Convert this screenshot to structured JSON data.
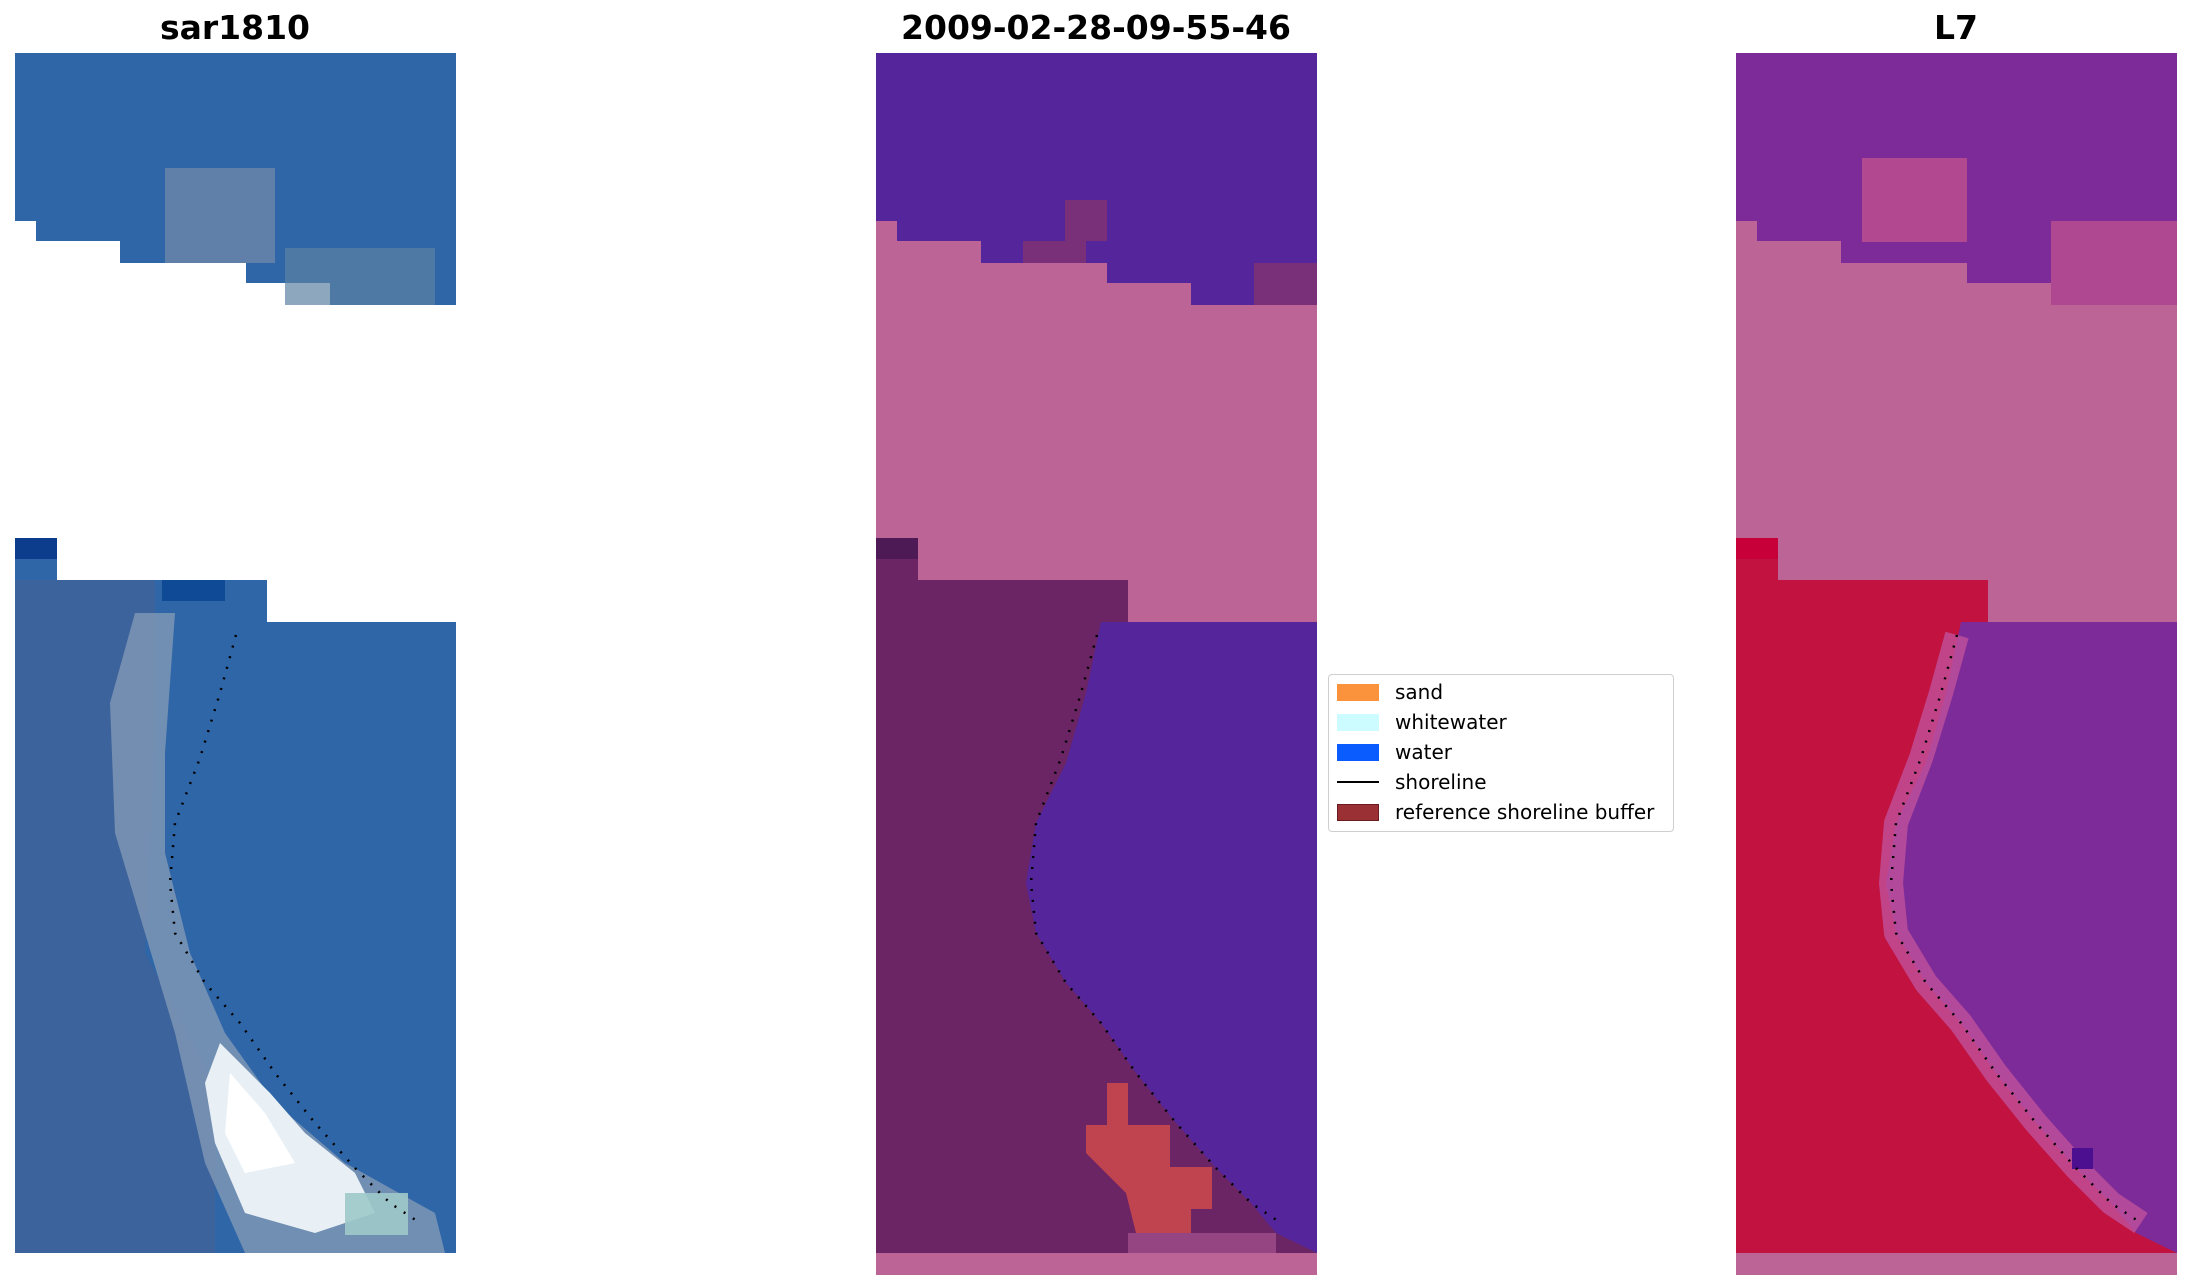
{
  "panels": [
    {
      "title": "sar1810"
    },
    {
      "title": "2009-02-28-09-55-46"
    },
    {
      "title": "L7"
    }
  ],
  "legend": {
    "items": [
      {
        "label": "sand",
        "color": "#fb923c",
        "kind": "patch"
      },
      {
        "label": "whitewater",
        "color": "#ccfcff",
        "kind": "patch"
      },
      {
        "label": "water",
        "color": "#0b5cff",
        "kind": "patch"
      },
      {
        "label": "shoreline",
        "color": "#000000",
        "kind": "line"
      },
      {
        "label": "reference shoreline buffer",
        "color": "#9a3034",
        "kind": "patch"
      }
    ]
  },
  "colors": {
    "rgb_water": "#2e66a8",
    "class_water": "#55259b",
    "class_buffer_overlay": "#bc6496",
    "class_land": "#6b2464",
    "ndwi_land": "#c2123f",
    "ndwi_water": "#7c2b98"
  }
}
